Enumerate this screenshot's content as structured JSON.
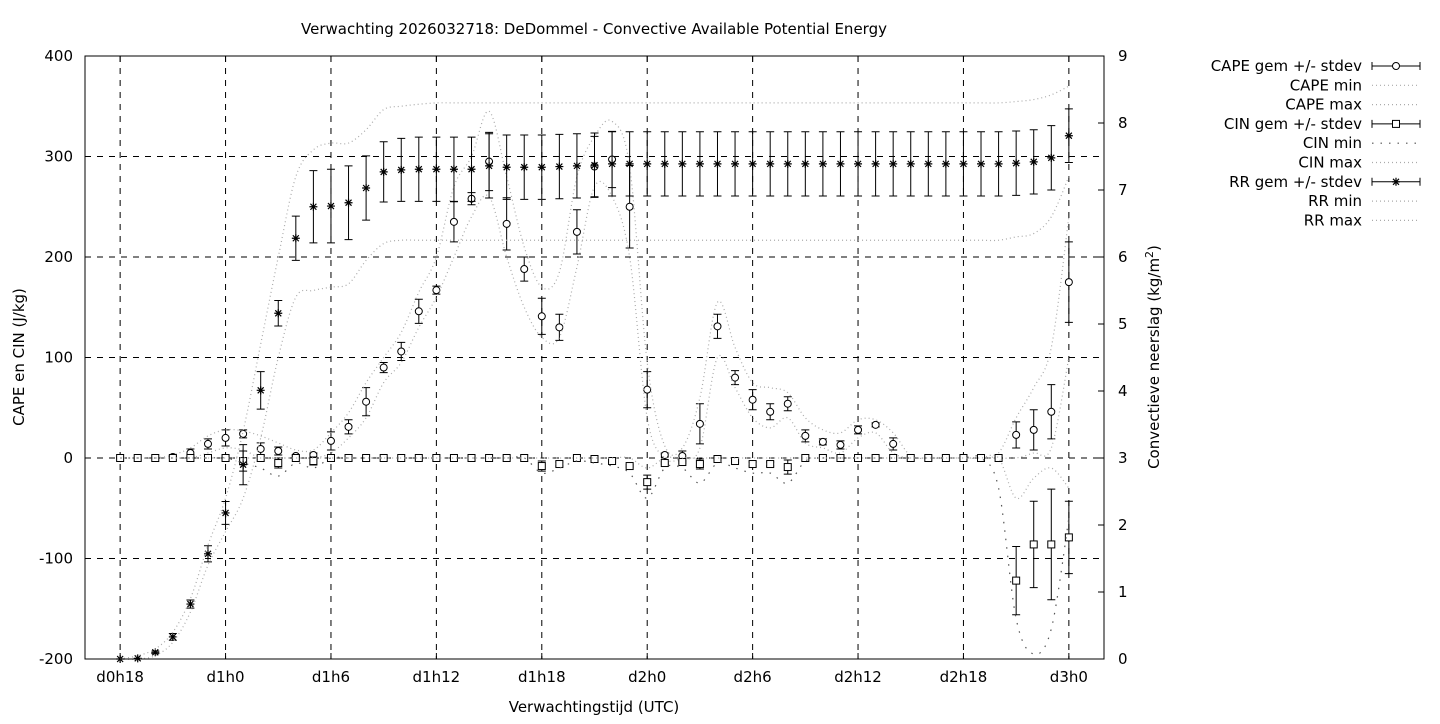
{
  "chart_data": {
    "type": "line",
    "title": "Verwachting 2026032718: DeDommel - Convective Available Potential Energy",
    "xlabel": "Verwachtingstijd (UTC)",
    "ylabel": "CAPE en CIN (J/kg)",
    "y2label": "Convectieve neerslag (kg/m",
    "y2label_sup": "2",
    "y2label_end": ")",
    "xlim_hours": [
      16,
      74
    ],
    "ylim": [
      -200,
      400
    ],
    "y2lim": [
      0,
      9
    ],
    "grid": true,
    "legend_position": "outside-top-right",
    "x_ticks": [
      {
        "hour": 18,
        "label": "d0h18"
      },
      {
        "hour": 24,
        "label": "d1h0"
      },
      {
        "hour": 30,
        "label": "d1h6"
      },
      {
        "hour": 36,
        "label": "d1h12"
      },
      {
        "hour": 42,
        "label": "d1h18"
      },
      {
        "hour": 48,
        "label": "d2h0"
      },
      {
        "hour": 54,
        "label": "d2h6"
      },
      {
        "hour": 60,
        "label": "d2h12"
      },
      {
        "hour": 66,
        "label": "d2h18"
      },
      {
        "hour": 72,
        "label": "d3h0"
      }
    ],
    "y_ticks": [
      "-200",
      "-100",
      "0",
      "100",
      "200",
      "300",
      "400"
    ],
    "y2_ticks": [
      "0",
      "1",
      "2",
      "3",
      "4",
      "5",
      "6",
      "7",
      "8",
      "9"
    ],
    "hour_start": 18,
    "series": [
      {
        "name": "CAPE gem +/- stdev",
        "axis": "y",
        "style": "errorbar-circle",
        "values": [
          0,
          0,
          0,
          1,
          5,
          14,
          20,
          24,
          9,
          7,
          2,
          3,
          17,
          31,
          56,
          90,
          106,
          146,
          167,
          235,
          258,
          295,
          233,
          188,
          141,
          130,
          225,
          290,
          297,
          250,
          68,
          3,
          2,
          34,
          131,
          80,
          58,
          46,
          54,
          22,
          16,
          13,
          28,
          33,
          14,
          0,
          0,
          0,
          0,
          0,
          0,
          23,
          28,
          46,
          175
        ],
        "stdev": [
          0,
          0,
          0,
          1,
          4,
          5,
          8,
          4,
          6,
          4,
          1,
          2,
          9,
          7,
          14,
          5,
          9,
          12,
          4,
          20,
          6,
          29,
          26,
          12,
          18,
          13,
          22,
          30,
          28,
          41,
          18,
          2,
          5,
          20,
          12,
          7,
          10,
          8,
          7,
          6,
          3,
          4,
          4,
          2,
          6,
          0,
          0,
          0,
          0,
          0,
          0,
          13,
          20,
          27,
          40
        ]
      },
      {
        "name": "CAPE min",
        "axis": "y",
        "style": "dotted",
        "values": [
          0,
          0,
          0,
          0,
          0,
          5,
          10,
          8,
          0,
          0,
          0,
          0,
          5,
          20,
          40,
          75,
          95,
          130,
          160,
          200,
          240,
          260,
          200,
          150,
          120,
          120,
          190,
          270,
          260,
          200,
          40,
          0,
          0,
          10,
          100,
          70,
          40,
          30,
          40,
          15,
          10,
          5,
          20,
          25,
          5,
          0,
          0,
          0,
          0,
          0,
          0,
          0,
          5,
          10,
          100
        ]
      },
      {
        "name": "CAPE max",
        "axis": "y",
        "style": "dotted",
        "values": [
          0,
          0,
          0,
          3,
          10,
          22,
          28,
          27,
          22,
          15,
          8,
          8,
          25,
          45,
          75,
          100,
          125,
          165,
          200,
          270,
          300,
          345,
          280,
          210,
          170,
          185,
          280,
          320,
          335,
          290,
          95,
          12,
          10,
          60,
          155,
          110,
          75,
          70,
          65,
          40,
          28,
          25,
          38,
          38,
          25,
          2,
          0,
          0,
          0,
          0,
          5,
          40,
          70,
          110,
          240
        ]
      },
      {
        "name": "CIN gem +/- stdev",
        "axis": "y",
        "style": "errorbar-square",
        "values": [
          0,
          0,
          0,
          0,
          0,
          0,
          0,
          -3,
          0,
          -5,
          0,
          -3,
          0,
          0,
          0,
          0,
          0,
          0,
          0,
          0,
          0,
          0,
          0,
          0,
          -8,
          -6,
          0,
          -1,
          -3,
          -8,
          -24,
          -5,
          -4,
          -6,
          -1,
          -3,
          -6,
          -6,
          -9,
          0,
          0,
          0,
          0,
          0,
          0,
          0,
          0,
          0,
          0,
          0,
          0,
          -122,
          -86,
          -86,
          -79
        ],
        "stdev": [
          0,
          0,
          0,
          0,
          0,
          0,
          0,
          10,
          0,
          5,
          0,
          4,
          0,
          0,
          0,
          0,
          0,
          0,
          0,
          0,
          0,
          0,
          0,
          0,
          5,
          2,
          0,
          1,
          1,
          1,
          7,
          1,
          1,
          5,
          1,
          1,
          2,
          2,
          7,
          0,
          0,
          0,
          0,
          0,
          0,
          0,
          0,
          0,
          0,
          0,
          0,
          34,
          43,
          55,
          36
        ]
      },
      {
        "name": "CIN min",
        "axis": "y",
        "style": "dotted-dark",
        "values": [
          0,
          0,
          0,
          0,
          0,
          0,
          0,
          -5,
          -10,
          -18,
          -5,
          -10,
          0,
          0,
          0,
          0,
          0,
          0,
          0,
          0,
          0,
          0,
          0,
          0,
          -15,
          -10,
          -3,
          -5,
          -8,
          -15,
          -40,
          -10,
          -10,
          -25,
          -5,
          -10,
          -15,
          -15,
          -25,
          -3,
          0,
          0,
          0,
          0,
          0,
          0,
          0,
          0,
          0,
          0,
          -30,
          -160,
          -195,
          -170,
          -60
        ]
      },
      {
        "name": "CIN max",
        "axis": "y",
        "style": "dotted",
        "values": [
          0,
          0,
          0,
          0,
          0,
          0,
          0,
          0,
          0,
          0,
          0,
          0,
          0,
          0,
          0,
          0,
          0,
          0,
          0,
          0,
          0,
          0,
          0,
          0,
          0,
          0,
          0,
          0,
          0,
          0,
          -10,
          0,
          0,
          0,
          0,
          0,
          0,
          0,
          0,
          0,
          0,
          0,
          0,
          0,
          0,
          0,
          0,
          0,
          0,
          0,
          0,
          -40,
          -20,
          -10,
          -30
        ]
      },
      {
        "name": "RR gem +/- stdev",
        "axis": "y2",
        "style": "errorbar-star",
        "values": [
          0,
          0.01,
          0.1,
          0.33,
          0.82,
          1.57,
          2.18,
          2.9,
          4.01,
          5.16,
          6.28,
          6.75,
          6.76,
          6.81,
          7.03,
          7.27,
          7.3,
          7.31,
          7.31,
          7.31,
          7.31,
          7.36,
          7.34,
          7.34,
          7.34,
          7.35,
          7.36,
          7.37,
          7.39,
          7.39,
          7.39,
          7.39,
          7.39,
          7.39,
          7.39,
          7.39,
          7.39,
          7.39,
          7.39,
          7.39,
          7.39,
          7.39,
          7.39,
          7.39,
          7.39,
          7.39,
          7.39,
          7.39,
          7.39,
          7.39,
          7.39,
          7.4,
          7.42,
          7.48,
          7.81
        ],
        "stdev": [
          0,
          0,
          0.02,
          0.05,
          0.06,
          0.12,
          0.17,
          0.3,
          0.28,
          0.19,
          0.33,
          0.54,
          0.55,
          0.55,
          0.48,
          0.45,
          0.47,
          0.48,
          0.48,
          0.48,
          0.48,
          0.48,
          0.48,
          0.48,
          0.48,
          0.48,
          0.48,
          0.48,
          0.48,
          0.48,
          0.48,
          0.48,
          0.48,
          0.48,
          0.48,
          0.48,
          0.48,
          0.48,
          0.48,
          0.48,
          0.48,
          0.48,
          0.48,
          0.48,
          0.48,
          0.48,
          0.48,
          0.48,
          0.48,
          0.48,
          0.48,
          0.48,
          0.48,
          0.48,
          0.4
        ]
      },
      {
        "name": "RR min",
        "axis": "y2",
        "style": "dotted",
        "values": [
          0,
          0,
          0.05,
          0.25,
          0.7,
          1.4,
          1.9,
          2.4,
          3.3,
          4.5,
          5.4,
          5.5,
          5.55,
          5.6,
          5.95,
          6.2,
          6.25,
          6.25,
          6.25,
          6.25,
          6.25,
          6.25,
          6.25,
          6.25,
          6.25,
          6.25,
          6.25,
          6.25,
          6.25,
          6.25,
          6.25,
          6.25,
          6.25,
          6.25,
          6.25,
          6.25,
          6.25,
          6.25,
          6.25,
          6.25,
          6.25,
          6.25,
          6.25,
          6.25,
          6.25,
          6.25,
          6.25,
          6.25,
          6.25,
          6.25,
          6.25,
          6.3,
          6.35,
          6.6,
          7.2
        ]
      },
      {
        "name": "RR max",
        "axis": "y2",
        "style": "dotted",
        "values": [
          0,
          0.05,
          0.15,
          0.4,
          0.9,
          1.7,
          2.4,
          3.4,
          4.7,
          6.0,
          7.2,
          7.6,
          7.7,
          7.7,
          7.9,
          8.2,
          8.25,
          8.28,
          8.3,
          8.3,
          8.3,
          8.3,
          8.3,
          8.3,
          8.3,
          8.3,
          8.3,
          8.3,
          8.3,
          8.3,
          8.3,
          8.3,
          8.3,
          8.3,
          8.3,
          8.3,
          8.3,
          8.3,
          8.3,
          8.3,
          8.3,
          8.3,
          8.3,
          8.3,
          8.3,
          8.3,
          8.3,
          8.3,
          8.3,
          8.3,
          8.3,
          8.32,
          8.35,
          8.42,
          8.55
        ]
      }
    ]
  }
}
